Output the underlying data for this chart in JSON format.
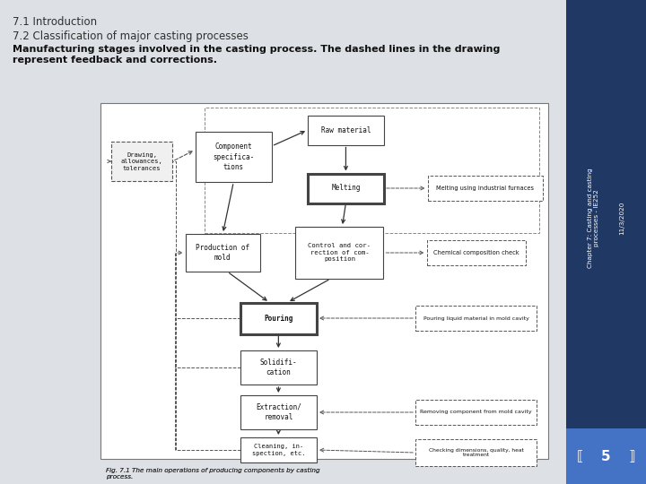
{
  "title1": "7.1 Introduction",
  "title2": "7.2 Classification of major casting processes",
  "subtitle": "Manufacturing stages involved in the casting process. The dashed lines in the drawing\nrepresent feedback and corrections.",
  "fig_caption": "Fig. 7.1 The main operations of producing components by casting\nprocess.",
  "sidebar_title": "Chapter 7: Casting and casting\nprocesses - IE252",
  "sidebar_date": "11/3/2020",
  "page_num": "5",
  "bg_color": "#dde0e5",
  "sidebar_color": "#1f3864",
  "page_num_bg": "#4472c4",
  "diagram_bg": "#d8d8d8",
  "box_fc": "#e8e8e8",
  "box_ec": "#555555"
}
